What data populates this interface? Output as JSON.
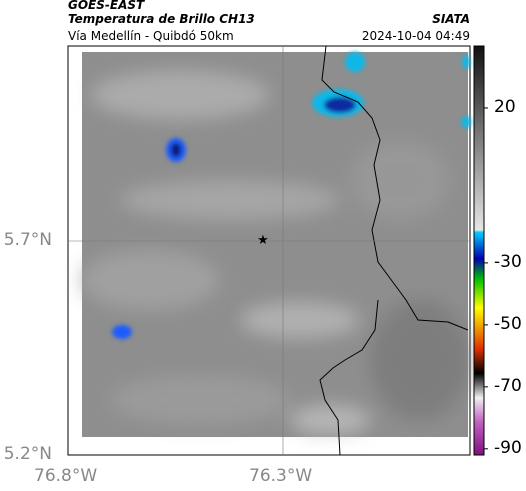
{
  "header": {
    "source": "GOES-EAST",
    "title": "Temperatura de Brillo CH13",
    "org": "SIATA",
    "location": "Vía Medellín - Quibdó 50km",
    "datetime": "2024-10-04 04:49"
  },
  "map": {
    "lat_labels": [
      "5.7°N",
      "5.2°N"
    ],
    "lon_labels": [
      "76.8°W",
      "76.3°W"
    ]
  },
  "colorbar": {
    "lim": [
      -92,
      40
    ],
    "ticks": [
      20,
      -30,
      -50,
      -70,
      -90
    ]
  }
}
